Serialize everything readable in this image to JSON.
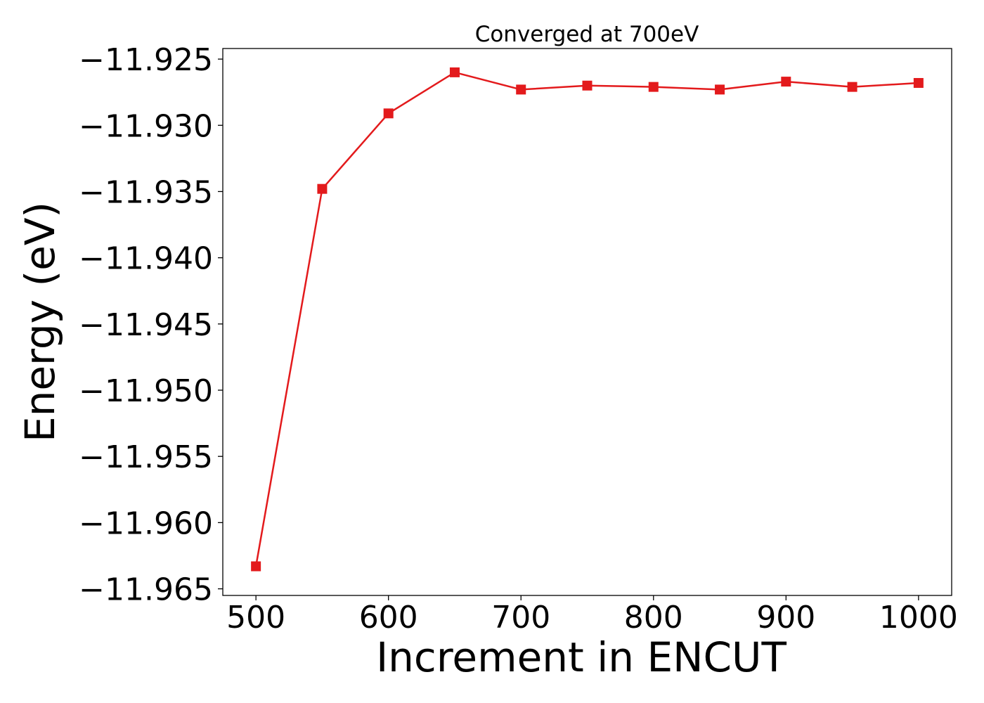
{
  "chart_data": {
    "type": "line",
    "title": "Converged at 700eV",
    "xlabel": "Increment in ENCUT",
    "ylabel": "Energy (eV)",
    "xlim": [
      475,
      1025
    ],
    "ylim": [
      -11.9655,
      -11.9242
    ],
    "xticks": [
      500,
      600,
      700,
      800,
      900,
      1000
    ],
    "xtick_labels": [
      "500",
      "600",
      "700",
      "800",
      "900",
      "1000"
    ],
    "yticks": [
      -11.925,
      -11.93,
      -11.935,
      -11.94,
      -11.945,
      -11.95,
      -11.955,
      -11.96,
      -11.965
    ],
    "ytick_labels": [
      "−11.925",
      "−11.930",
      "−11.935",
      "−11.940",
      "−11.945",
      "−11.950",
      "−11.955",
      "−11.960",
      "−11.965"
    ],
    "grid": false,
    "series": [
      {
        "color": "#e31a1c",
        "marker": "square",
        "x": [
          500,
          550,
          600,
          650,
          700,
          750,
          800,
          850,
          900,
          950,
          1000
        ],
        "y": [
          -11.9633,
          -11.9348,
          -11.9291,
          -11.926,
          -11.9273,
          -11.927,
          -11.9271,
          -11.9273,
          -11.9267,
          -11.9271,
          -11.9268
        ]
      }
    ]
  }
}
